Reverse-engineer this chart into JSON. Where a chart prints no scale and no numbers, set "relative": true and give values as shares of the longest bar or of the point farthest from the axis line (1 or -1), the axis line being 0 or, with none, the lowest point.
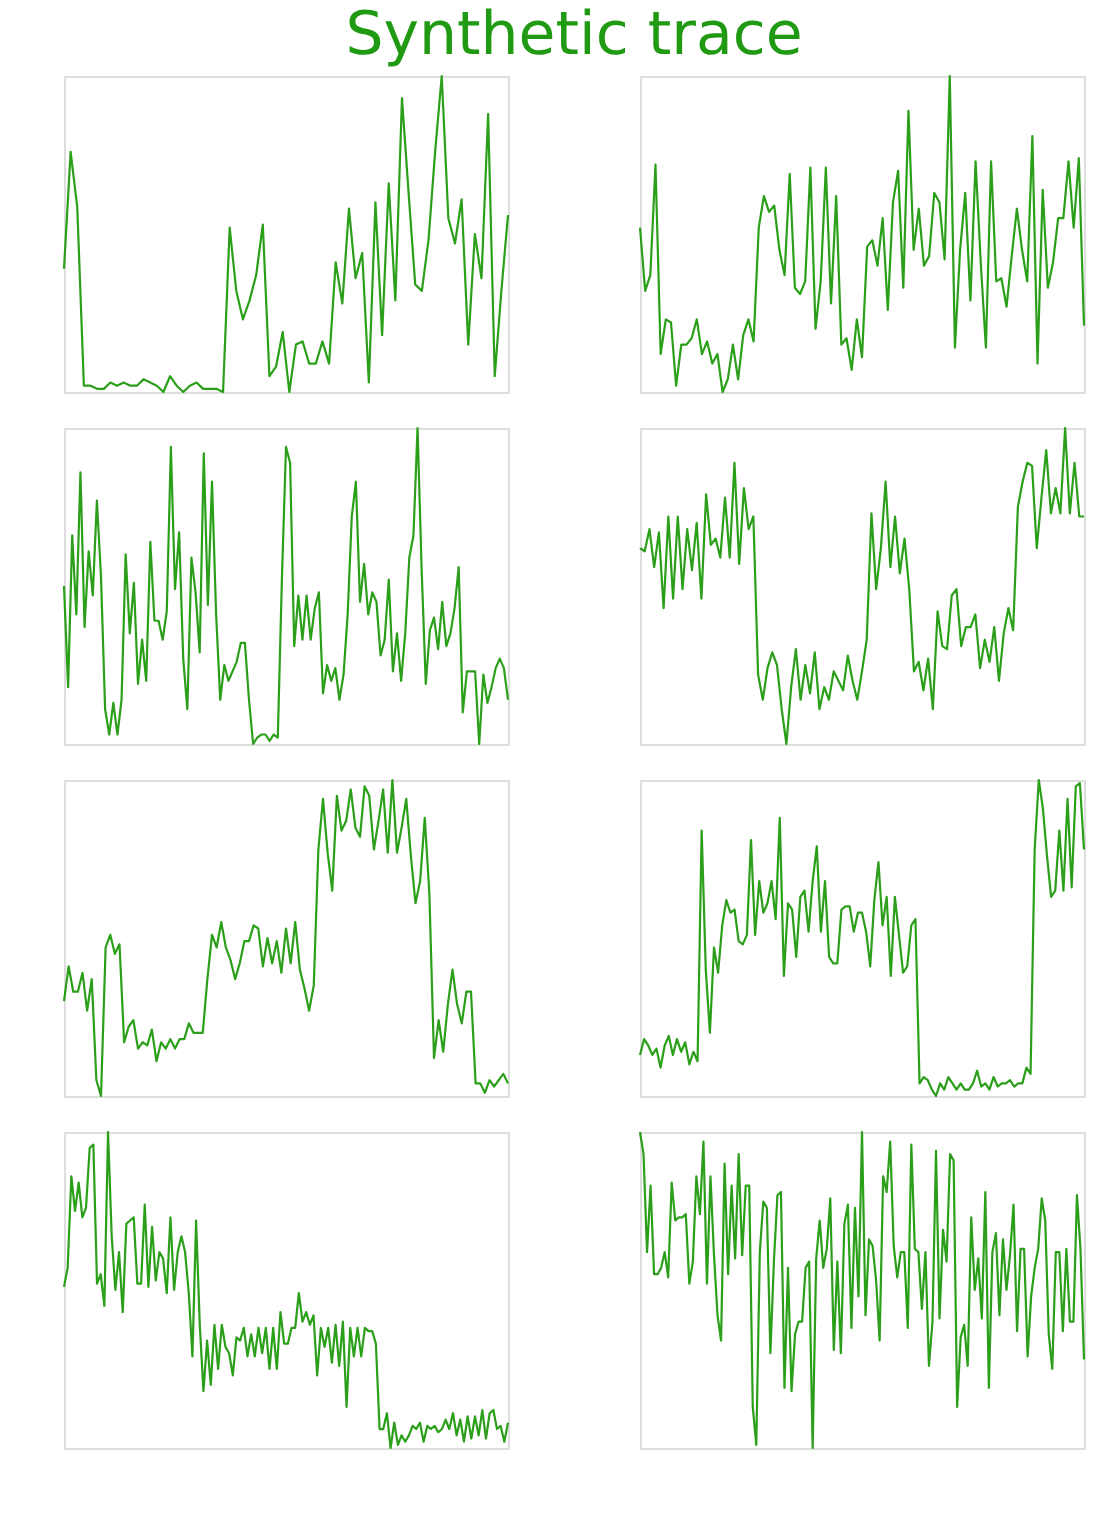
{
  "chart_data": [
    {
      "type": "line",
      "relative": true,
      "title": "Synthetic trace",
      "categories": [
        null,
        null,
        null,
        null,
        null,
        null,
        null,
        null,
        null,
        null,
        null,
        null,
        null,
        null,
        null,
        null,
        null,
        null,
        null,
        null,
        null,
        null,
        null,
        null,
        null,
        null,
        null,
        null,
        null,
        null,
        null,
        null,
        null,
        null,
        null,
        null,
        null,
        null,
        null,
        null,
        null,
        null,
        null,
        null,
        null,
        null,
        null,
        null,
        null,
        null,
        null,
        null,
        null,
        null,
        null,
        null,
        null,
        null,
        null,
        null,
        null,
        null,
        null,
        null,
        null,
        null,
        null,
        null
      ],
      "series": [
        {
          "color": "#2b9f1a",
          "values": [
            0.39,
            0.76,
            0.585,
            0.02,
            0.02,
            0.01,
            0.01,
            0.03,
            0.02,
            0.03,
            0.02,
            0.02,
            0.04,
            0.03,
            0.02,
            0.0,
            0.05,
            0.02,
            0.0,
            0.02,
            0.03,
            0.01,
            0.01,
            0.01,
            0.0,
            0.52,
            0.32,
            0.23,
            0.29,
            0.37,
            0.53,
            0.05,
            0.08,
            0.19,
            0.0,
            0.15,
            0.16,
            0.09,
            0.09,
            0.16,
            0.09,
            0.41,
            0.28,
            0.58,
            0.36,
            0.44,
            0.03,
            0.6,
            0.18,
            0.66,
            0.29,
            0.93,
            0.63,
            0.34,
            0.32,
            0.48,
            0.76,
            1.0,
            0.55,
            0.47,
            0.61,
            0.15,
            0.5,
            0.36,
            0.88,
            0.05,
            0.32,
            0.56
          ]
        }
      ]
    },
    {
      "type": "line",
      "relative": true,
      "categories": [
        null,
        null,
        null,
        null,
        null,
        null,
        null,
        null,
        null,
        null,
        null,
        null,
        null,
        null,
        null,
        null,
        null,
        null,
        null,
        null,
        null,
        null,
        null,
        null,
        null,
        null,
        null,
        null,
        null,
        null,
        null,
        null,
        null,
        null,
        null,
        null,
        null,
        null,
        null,
        null,
        null,
        null,
        null,
        null,
        null,
        null,
        null,
        null,
        null,
        null,
        null,
        null,
        null,
        null,
        null,
        null,
        null,
        null,
        null,
        null,
        null,
        null,
        null,
        null,
        null,
        null,
        null,
        null,
        null,
        null,
        null,
        null,
        null,
        null,
        null,
        null,
        null,
        null,
        null,
        null,
        null,
        null,
        null,
        null,
        null,
        null,
        null
      ],
      "series": [
        {
          "color": "#2b9f1a",
          "values": [
            0.52,
            0.32,
            0.37,
            0.72,
            0.12,
            0.23,
            0.22,
            0.02,
            0.15,
            0.15,
            0.17,
            0.23,
            0.12,
            0.16,
            0.09,
            0.12,
            0.0,
            0.04,
            0.15,
            0.04,
            0.18,
            0.23,
            0.16,
            0.52,
            0.62,
            0.57,
            0.59,
            0.45,
            0.37,
            0.69,
            0.33,
            0.31,
            0.35,
            0.71,
            0.2,
            0.35,
            0.71,
            0.28,
            0.62,
            0.15,
            0.17,
            0.07,
            0.23,
            0.11,
            0.46,
            0.48,
            0.4,
            0.55,
            0.26,
            0.6,
            0.7,
            0.33,
            0.89,
            0.45,
            0.58,
            0.4,
            0.43,
            0.63,
            0.6,
            0.42,
            1.0,
            0.14,
            0.45,
            0.63,
            0.29,
            0.73,
            0.41,
            0.14,
            0.73,
            0.35,
            0.36,
            0.27,
            0.43,
            0.58,
            0.45,
            0.35,
            0.81,
            0.09,
            0.64,
            0.33,
            0.41,
            0.55,
            0.55,
            0.73,
            0.52,
            0.74,
            0.21
          ]
        }
      ]
    },
    {
      "type": "line",
      "relative": true,
      "categories": [
        null,
        null,
        null,
        null,
        null,
        null,
        null,
        null,
        null,
        null,
        null,
        null,
        null,
        null,
        null,
        null,
        null,
        null,
        null,
        null,
        null,
        null,
        null,
        null,
        null,
        null,
        null,
        null,
        null,
        null,
        null,
        null,
        null,
        null,
        null,
        null,
        null,
        null,
        null,
        null,
        null,
        null,
        null,
        null,
        null,
        null,
        null,
        null,
        null,
        null,
        null,
        null,
        null,
        null,
        null,
        null,
        null,
        null,
        null,
        null,
        null,
        null,
        null,
        null,
        null,
        null,
        null,
        null,
        null,
        null,
        null,
        null,
        null,
        null,
        null,
        null,
        null,
        null,
        null,
        null,
        null,
        null,
        null,
        null,
        null,
        null,
        null,
        null,
        null,
        null,
        null,
        null,
        null,
        null,
        null,
        null,
        null,
        null,
        null,
        null,
        null,
        null,
        null,
        null,
        null,
        null,
        null,
        null,
        null
      ],
      "series": [
        {
          "color": "#2b9f1a",
          "values": [
            0.5,
            0.18,
            0.66,
            0.41,
            0.86,
            0.37,
            0.61,
            0.47,
            0.77,
            0.53,
            0.11,
            0.03,
            0.13,
            0.03,
            0.14,
            0.6,
            0.35,
            0.51,
            0.19,
            0.33,
            0.2,
            0.64,
            0.39,
            0.39,
            0.33,
            0.42,
            0.94,
            0.49,
            0.67,
            0.27,
            0.11,
            0.59,
            0.48,
            0.29,
            0.92,
            0.44,
            0.83,
            0.41,
            0.14,
            0.25,
            0.2,
            0.23,
            0.26,
            0.32,
            0.32,
            0.14,
            0.0,
            0.02,
            0.03,
            0.03,
            0.01,
            0.03,
            0.02,
            0.52,
            0.94,
            0.89,
            0.31,
            0.47,
            0.33,
            0.47,
            0.33,
            0.43,
            0.48,
            0.16,
            0.25,
            0.2,
            0.24,
            0.14,
            0.22,
            0.41,
            0.72,
            0.83,
            0.45,
            0.57,
            0.41,
            0.48,
            0.45,
            0.28,
            0.33,
            0.52,
            0.23,
            0.35,
            0.2,
            0.35,
            0.59,
            0.66,
            1.0,
            0.55,
            0.19,
            0.36,
            0.4,
            0.3,
            0.45,
            0.31,
            0.35,
            0.43,
            0.56,
            0.1,
            0.23,
            0.23,
            0.23,
            0.0,
            0.22,
            0.13,
            0.18,
            0.24,
            0.27,
            0.24,
            0.14
          ]
        }
      ]
    },
    {
      "type": "line",
      "relative": true,
      "categories": [
        null,
        null,
        null,
        null,
        null,
        null,
        null,
        null,
        null,
        null,
        null,
        null,
        null,
        null,
        null,
        null,
        null,
        null,
        null,
        null,
        null,
        null,
        null,
        null,
        null,
        null,
        null,
        null,
        null,
        null,
        null,
        null,
        null,
        null,
        null,
        null,
        null,
        null,
        null,
        null,
        null,
        null,
        null,
        null,
        null,
        null,
        null,
        null,
        null,
        null,
        null,
        null,
        null,
        null,
        null,
        null,
        null,
        null,
        null,
        null,
        null,
        null,
        null,
        null,
        null,
        null,
        null,
        null,
        null,
        null,
        null,
        null,
        null,
        null,
        null,
        null,
        null,
        null,
        null,
        null,
        null,
        null,
        null,
        null,
        null,
        null,
        null,
        null,
        null,
        null,
        null,
        null,
        null,
        null,
        null
      ],
      "series": [
        {
          "color": "#2b9f1a",
          "values": [
            0.62,
            0.61,
            0.68,
            0.56,
            0.67,
            0.43,
            0.72,
            0.46,
            0.72,
            0.49,
            0.68,
            0.55,
            0.7,
            0.46,
            0.79,
            0.63,
            0.65,
            0.59,
            0.78,
            0.59,
            0.89,
            0.57,
            0.81,
            0.68,
            0.72,
            0.22,
            0.14,
            0.24,
            0.29,
            0.25,
            0.11,
            0.0,
            0.18,
            0.3,
            0.14,
            0.25,
            0.16,
            0.29,
            0.11,
            0.18,
            0.14,
            0.23,
            0.2,
            0.17,
            0.28,
            0.2,
            0.14,
            0.23,
            0.33,
            0.73,
            0.49,
            0.62,
            0.83,
            0.56,
            0.72,
            0.54,
            0.65,
            0.49,
            0.23,
            0.26,
            0.17,
            0.27,
            0.11,
            0.42,
            0.31,
            0.3,
            0.47,
            0.49,
            0.31,
            0.37,
            0.37,
            0.41,
            0.24,
            0.33,
            0.26,
            0.37,
            0.2,
            0.35,
            0.43,
            0.36,
            0.75,
            0.83,
            0.89,
            0.88,
            0.62,
            0.78,
            0.93,
            0.73,
            0.81,
            0.73,
            1.0,
            0.73,
            0.89,
            0.72,
            0.72
          ]
        }
      ]
    },
    {
      "type": "line",
      "relative": true,
      "categories": [
        null,
        null,
        null,
        null,
        null,
        null,
        null,
        null,
        null,
        null,
        null,
        null,
        null,
        null,
        null,
        null,
        null,
        null,
        null,
        null,
        null,
        null,
        null,
        null,
        null,
        null,
        null,
        null,
        null,
        null,
        null,
        null,
        null,
        null,
        null,
        null,
        null,
        null,
        null,
        null,
        null,
        null,
        null,
        null,
        null,
        null,
        null,
        null,
        null,
        null,
        null,
        null,
        null,
        null,
        null,
        null,
        null,
        null,
        null,
        null,
        null,
        null,
        null,
        null,
        null,
        null,
        null,
        null,
        null,
        null,
        null,
        null,
        null,
        null,
        null,
        null,
        null,
        null,
        null,
        null,
        null,
        null,
        null,
        null,
        null,
        null,
        null,
        null,
        null,
        null,
        null,
        null,
        null,
        null,
        null,
        null,
        null
      ],
      "series": [
        {
          "color": "#2b9f1a",
          "values": [
            0.3,
            0.41,
            0.33,
            0.33,
            0.39,
            0.27,
            0.37,
            0.05,
            0.0,
            0.47,
            0.51,
            0.45,
            0.48,
            0.17,
            0.22,
            0.24,
            0.15,
            0.17,
            0.16,
            0.21,
            0.11,
            0.17,
            0.15,
            0.18,
            0.15,
            0.18,
            0.18,
            0.23,
            0.2,
            0.2,
            0.2,
            0.37,
            0.51,
            0.47,
            0.55,
            0.47,
            0.43,
            0.37,
            0.42,
            0.49,
            0.49,
            0.54,
            0.53,
            0.41,
            0.5,
            0.42,
            0.49,
            0.39,
            0.53,
            0.42,
            0.55,
            0.4,
            0.34,
            0.27,
            0.35,
            0.78,
            0.94,
            0.77,
            0.65,
            0.95,
            0.84,
            0.87,
            0.97,
            0.85,
            0.82,
            0.98,
            0.95,
            0.78,
            0.87,
            0.97,
            0.77,
            1.0,
            0.77,
            0.85,
            0.94,
            0.76,
            0.61,
            0.68,
            0.88,
            0.64,
            0.12,
            0.24,
            0.14,
            0.29,
            0.4,
            0.29,
            0.23,
            0.33,
            0.33,
            0.04,
            0.04,
            0.01,
            0.05,
            0.03,
            0.05,
            0.07,
            0.04
          ]
        }
      ]
    },
    {
      "type": "line",
      "relative": true,
      "categories": [
        null,
        null,
        null,
        null,
        null,
        null,
        null,
        null,
        null,
        null,
        null,
        null,
        null,
        null,
        null,
        null,
        null,
        null,
        null,
        null,
        null,
        null,
        null,
        null,
        null,
        null,
        null,
        null,
        null,
        null,
        null,
        null,
        null,
        null,
        null,
        null,
        null,
        null,
        null,
        null,
        null,
        null,
        null,
        null,
        null,
        null,
        null,
        null,
        null,
        null,
        null,
        null,
        null,
        null,
        null,
        null,
        null,
        null,
        null,
        null,
        null,
        null,
        null,
        null,
        null,
        null,
        null,
        null,
        null,
        null,
        null,
        null,
        null,
        null,
        null,
        null,
        null,
        null,
        null,
        null,
        null,
        null,
        null,
        null,
        null,
        null,
        null,
        null,
        null,
        null,
        null,
        null,
        null,
        null,
        null,
        null,
        null,
        null,
        null,
        null,
        null,
        null,
        null,
        null,
        null,
        null,
        null,
        null,
        null
      ],
      "series": [
        {
          "color": "#2b9f1a",
          "values": [
            0.13,
            0.18,
            0.16,
            0.13,
            0.15,
            0.09,
            0.16,
            0.19,
            0.13,
            0.18,
            0.14,
            0.17,
            0.1,
            0.14,
            0.11,
            0.84,
            0.4,
            0.2,
            0.47,
            0.39,
            0.54,
            0.62,
            0.58,
            0.59,
            0.49,
            0.48,
            0.51,
            0.81,
            0.51,
            0.68,
            0.58,
            0.61,
            0.68,
            0.56,
            0.88,
            0.38,
            0.61,
            0.59,
            0.44,
            0.63,
            0.65,
            0.52,
            0.68,
            0.79,
            0.52,
            0.68,
            0.44,
            0.42,
            0.42,
            0.59,
            0.6,
            0.6,
            0.52,
            0.58,
            0.58,
            0.52,
            0.41,
            0.62,
            0.74,
            0.54,
            0.63,
            0.38,
            0.63,
            0.51,
            0.39,
            0.41,
            0.54,
            0.56,
            0.04,
            0.06,
            0.05,
            0.02,
            0.0,
            0.04,
            0.02,
            0.06,
            0.04,
            0.02,
            0.04,
            0.02,
            0.02,
            0.04,
            0.08,
            0.03,
            0.04,
            0.02,
            0.06,
            0.03,
            0.04,
            0.04,
            0.05,
            0.03,
            0.04,
            0.04,
            0.09,
            0.07,
            0.78,
            1.0,
            0.91,
            0.76,
            0.63,
            0.65,
            0.84,
            0.65,
            0.94,
            0.66,
            0.98,
            0.99,
            0.78
          ]
        }
      ]
    },
    {
      "type": "line",
      "relative": true,
      "categories": [
        null,
        null,
        null,
        null,
        null,
        null,
        null,
        null,
        null,
        null,
        null,
        null,
        null,
        null,
        null,
        null,
        null,
        null,
        null,
        null,
        null,
        null,
        null,
        null,
        null,
        null,
        null,
        null,
        null,
        null,
        null,
        null,
        null,
        null,
        null,
        null,
        null,
        null,
        null,
        null,
        null,
        null,
        null,
        null,
        null,
        null,
        null,
        null,
        null,
        null,
        null,
        null,
        null,
        null,
        null,
        null,
        null,
        null,
        null,
        null,
        null,
        null,
        null,
        null,
        null,
        null,
        null,
        null,
        null,
        null,
        null,
        null,
        null,
        null,
        null,
        null,
        null,
        null,
        null,
        null,
        null,
        null,
        null,
        null,
        null,
        null,
        null,
        null,
        null,
        null,
        null,
        null,
        null,
        null,
        null,
        null,
        null,
        null,
        null,
        null,
        null,
        null,
        null,
        null,
        null,
        null,
        null,
        null,
        null,
        null,
        null,
        null,
        null,
        null,
        null,
        null,
        null,
        null,
        null,
        null,
        null,
        null
      ],
      "series": [
        {
          "color": "#2b9f1a",
          "values": [
            0.51,
            0.57,
            0.86,
            0.75,
            0.84,
            0.73,
            0.76,
            0.95,
            0.96,
            0.52,
            0.55,
            0.45,
            1.0,
            0.67,
            0.5,
            0.62,
            0.43,
            0.71,
            0.72,
            0.73,
            0.52,
            0.52,
            0.77,
            0.51,
            0.7,
            0.53,
            0.62,
            0.6,
            0.49,
            0.73,
            0.5,
            0.62,
            0.67,
            0.62,
            0.49,
            0.29,
            0.72,
            0.39,
            0.18,
            0.34,
            0.2,
            0.39,
            0.25,
            0.39,
            0.32,
            0.3,
            0.23,
            0.35,
            0.34,
            0.38,
            0.29,
            0.36,
            0.29,
            0.38,
            0.3,
            0.38,
            0.25,
            0.38,
            0.25,
            0.43,
            0.33,
            0.33,
            0.38,
            0.38,
            0.49,
            0.4,
            0.43,
            0.39,
            0.42,
            0.23,
            0.38,
            0.32,
            0.38,
            0.27,
            0.39,
            0.26,
            0.4,
            0.13,
            0.38,
            0.29,
            0.38,
            0.29,
            0.38,
            0.37,
            0.37,
            0.33,
            0.06,
            0.06,
            0.11,
            0.0,
            0.08,
            0.01,
            0.04,
            0.02,
            0.04,
            0.07,
            0.06,
            0.08,
            0.02,
            0.07,
            0.06,
            0.07,
            0.05,
            0.06,
            0.09,
            0.06,
            0.11,
            0.04,
            0.09,
            0.02,
            0.1,
            0.03,
            0.1,
            0.04,
            0.12,
            0.03,
            0.11,
            0.12,
            0.06,
            0.07,
            0.02,
            0.08
          ]
        }
      ]
    },
    {
      "type": "line",
      "relative": true,
      "categories": [
        null,
        null,
        null,
        null,
        null,
        null,
        null,
        null,
        null,
        null,
        null,
        null,
        null,
        null,
        null,
        null,
        null,
        null,
        null,
        null,
        null,
        null,
        null,
        null,
        null,
        null,
        null,
        null,
        null,
        null,
        null,
        null,
        null,
        null,
        null,
        null,
        null,
        null,
        null,
        null,
        null,
        null,
        null,
        null,
        null,
        null,
        null,
        null,
        null,
        null,
        null,
        null,
        null,
        null,
        null,
        null,
        null,
        null,
        null,
        null,
        null,
        null,
        null,
        null,
        null,
        null,
        null,
        null,
        null,
        null,
        null,
        null,
        null,
        null,
        null,
        null,
        null,
        null,
        null,
        null,
        null,
        null,
        null,
        null,
        null,
        null,
        null,
        null,
        null,
        null,
        null,
        null,
        null,
        null,
        null,
        null,
        null,
        null,
        null,
        null,
        null,
        null,
        null,
        null,
        null,
        null,
        null,
        null,
        null,
        null,
        null,
        null,
        null,
        null,
        null,
        null,
        null,
        null,
        null,
        null,
        null,
        null,
        null,
        null,
        null,
        null,
        null
      ],
      "series": [
        {
          "color": "#2b9f1a",
          "values": [
            1.0,
            0.93,
            0.62,
            0.83,
            0.55,
            0.55,
            0.57,
            0.62,
            0.54,
            0.84,
            0.72,
            0.73,
            0.73,
            0.74,
            0.52,
            0.59,
            0.86,
            0.74,
            0.97,
            0.52,
            0.86,
            0.61,
            0.42,
            0.34,
            0.9,
            0.55,
            0.83,
            0.6,
            0.93,
            0.61,
            0.83,
            0.83,
            0.13,
            0.01,
            0.62,
            0.78,
            0.76,
            0.3,
            0.59,
            0.8,
            0.81,
            0.19,
            0.57,
            0.18,
            0.36,
            0.4,
            0.4,
            0.57,
            0.59,
            0.0,
            0.6,
            0.72,
            0.57,
            0.63,
            0.79,
            0.31,
            0.59,
            0.3,
            0.71,
            0.77,
            0.38,
            0.76,
            0.48,
            1.0,
            0.42,
            0.66,
            0.64,
            0.53,
            0.34,
            0.86,
            0.81,
            0.97,
            0.64,
            0.54,
            0.62,
            0.62,
            0.38,
            0.96,
            0.63,
            0.62,
            0.44,
            0.62,
            0.26,
            0.4,
            0.94,
            0.41,
            0.69,
            0.59,
            0.93,
            0.91,
            0.13,
            0.35,
            0.39,
            0.26,
            0.73,
            0.5,
            0.6,
            0.41,
            0.81,
            0.19,
            0.62,
            0.68,
            0.42,
            0.66,
            0.5,
            0.61,
            0.77,
            0.37,
            0.63,
            0.63,
            0.29,
            0.48,
            0.57,
            0.63,
            0.79,
            0.72,
            0.36,
            0.25,
            0.62,
            0.62,
            0.37,
            0.63,
            0.4,
            0.4,
            0.8,
            0.63,
            0.28
          ]
        }
      ]
    }
  ]
}
